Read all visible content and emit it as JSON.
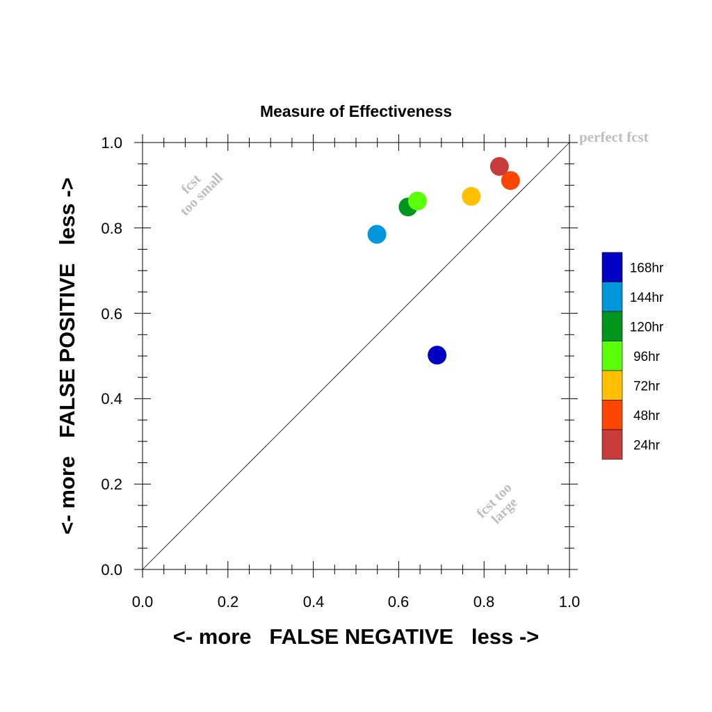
{
  "chart_data": {
    "type": "scatter",
    "title": "Measure of Effectiveness",
    "xlabel": "<- more   FALSE NEGATIVE   less ->",
    "ylabel": "<- more   FALSE POSITIVE   less ->",
    "xlim": [
      0,
      1
    ],
    "ylim": [
      0,
      1
    ],
    "x_ticks": [
      "0.0",
      "0.2",
      "0.4",
      "0.6",
      "0.8",
      "1.0"
    ],
    "y_ticks": [
      "0.0",
      "0.2",
      "0.4",
      "0.6",
      "0.8",
      "1.0"
    ],
    "grid": false,
    "diagonal_reference_line": true,
    "annotations": {
      "perfect": "perfect fcst",
      "small_line1": "fcst",
      "small_line2": "too small",
      "large_line1": "fcst too",
      "large_line2": "large"
    },
    "legend_placement": "right",
    "series": [
      {
        "name": "168hr",
        "color": "#0000c4",
        "x": 0.69,
        "y": 0.502
      },
      {
        "name": "144hr",
        "color": "#0096dc",
        "x": 0.549,
        "y": 0.785
      },
      {
        "name": "120hr",
        "color": "#00961e",
        "x": 0.622,
        "y": 0.849
      },
      {
        "name": "96hr",
        "color": "#5aff0a",
        "x": 0.644,
        "y": 0.863
      },
      {
        "name": "72hr",
        "color": "#ffc000",
        "x": 0.77,
        "y": 0.874
      },
      {
        "name": "48hr",
        "color": "#ff4600",
        "x": 0.862,
        "y": 0.911
      },
      {
        "name": "24hr",
        "color": "#c83c3c",
        "x": 0.836,
        "y": 0.944
      }
    ]
  }
}
